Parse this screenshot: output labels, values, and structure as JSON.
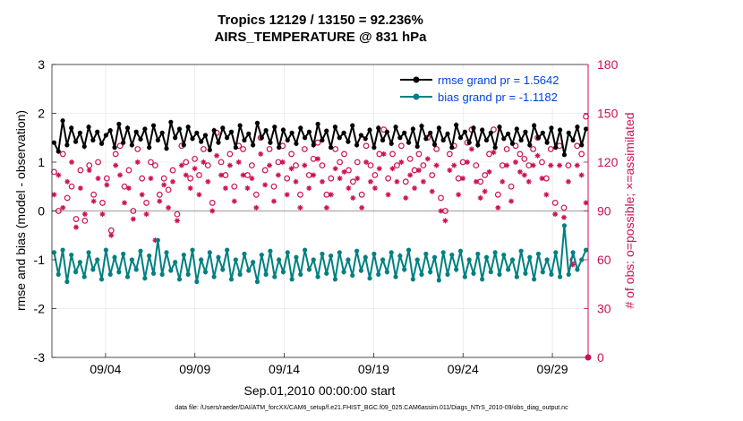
{
  "title_line1": "Tropics 12129 / 13150 = 92.236%",
  "title_line2": "AIRS_TEMPERATURE @ 831 hPa",
  "footnote": "data file: /Users/raeder/DAI/ATM_forcXX/CAM6_setup/f.e21.FHIST_BGC.f09_025.CAM6assim.011/Diags_NTrS_2010-09/obs_diag_output.nc",
  "chart_data": {
    "type": "line",
    "xlabel": "Sep.01,2010 00:00:00 start",
    "ylabel": "rmse and bias (model - observation)",
    "ylabel_right": "# of obs: o=possible; ×=assimilated",
    "xlim": [
      1.0,
      31.0
    ],
    "ylim": [
      -3,
      3
    ],
    "ylim_right": [
      0,
      180
    ],
    "x_ticks": [
      4,
      9,
      14,
      19,
      24,
      29
    ],
    "x_tick_labels": [
      "09/04",
      "09/09",
      "09/14",
      "09/19",
      "09/24",
      "09/29"
    ],
    "y_ticks": [
      -3,
      -2,
      -1,
      0,
      1,
      2,
      3
    ],
    "y_ticks_right": [
      0,
      30,
      60,
      90,
      120,
      150,
      180
    ],
    "grid": true,
    "legend_position": "top-right",
    "series": [
      {
        "name": "rmse grand pr = 1.5642",
        "color": "#000000",
        "legend_text_color": "#0044dd",
        "values": [
          1.4,
          1.22,
          1.85,
          1.35,
          1.7,
          1.42,
          1.6,
          1.32,
          1.72,
          1.45,
          1.62,
          1.38,
          1.55,
          1.65,
          1.3,
          1.78,
          1.4,
          1.7,
          1.35,
          1.62,
          1.47,
          1.68,
          1.3,
          1.75,
          1.45,
          1.6,
          1.28,
          1.82,
          1.5,
          1.68,
          1.35,
          1.72,
          1.48,
          1.6,
          1.42,
          1.55,
          1.25,
          1.65,
          1.4,
          1.7,
          1.5,
          1.62,
          1.3,
          1.75,
          1.45,
          1.58,
          1.35,
          1.8,
          1.5,
          1.65,
          1.4,
          1.72,
          1.3,
          1.66,
          1.45,
          1.6,
          1.38,
          1.7,
          1.5,
          1.62,
          1.35,
          1.78,
          1.45,
          1.64,
          1.3,
          1.72,
          1.5,
          1.6,
          1.42,
          1.75,
          1.35,
          1.55,
          1.48,
          1.66,
          1.3,
          1.7,
          1.45,
          1.62,
          1.38,
          1.72,
          1.5,
          1.6,
          1.4,
          1.68,
          1.32,
          1.74,
          1.48,
          1.6,
          1.36,
          1.7,
          1.45,
          1.58,
          1.3,
          1.76,
          1.5,
          1.62,
          1.4,
          1.7,
          1.35,
          1.66,
          1.45,
          1.6,
          1.3,
          1.72,
          1.48,
          1.58,
          1.38,
          1.68,
          1.45,
          1.62,
          1.35,
          1.75,
          1.5,
          1.6,
          1.4,
          1.7,
          1.3,
          1.66,
          1.15,
          1.6,
          1.45,
          1.72,
          1.35,
          1.68
        ]
      },
      {
        "name": "bias grand pr = -1.1182",
        "color": "#008080",
        "legend_text_color": "#0044dd",
        "values": [
          -0.85,
          -1.3,
          -0.8,
          -1.45,
          -0.9,
          -1.25,
          -1.05,
          -1.35,
          -0.85,
          -1.2,
          -1.0,
          -1.4,
          -0.8,
          -1.3,
          -0.95,
          -1.25,
          -0.88,
          -1.35,
          -1.0,
          -1.2,
          -0.82,
          -1.38,
          -0.92,
          -1.28,
          -0.6,
          -1.3,
          -0.85,
          -1.22,
          -1.05,
          -1.4,
          -0.9,
          -1.3,
          -0.8,
          -1.45,
          -1.0,
          -1.25,
          -0.85,
          -1.35,
          -0.95,
          -1.2,
          -0.8,
          -1.4,
          -1.0,
          -1.3,
          -0.88,
          -1.22,
          -1.05,
          -1.45,
          -0.9,
          -1.3,
          -0.82,
          -1.35,
          -1.0,
          -1.25,
          -0.85,
          -1.4,
          -0.95,
          -1.3,
          -0.8,
          -1.2,
          -1.0,
          -1.35,
          -0.88,
          -1.28,
          -0.92,
          -1.4,
          -0.85,
          -1.25,
          -1.0,
          -1.32,
          -0.82,
          -1.22,
          -0.95,
          -1.38,
          -0.88,
          -1.3,
          -1.0,
          -1.25,
          -0.85,
          -1.35,
          -0.92,
          -1.2,
          -0.8,
          -1.4,
          -1.0,
          -1.3,
          -0.88,
          -1.25,
          -0.95,
          -1.42,
          -0.85,
          -1.3,
          -0.9,
          -1.2,
          -0.82,
          -1.35,
          -1.0,
          -1.28,
          -0.88,
          -1.4,
          -0.95,
          -1.25,
          -0.85,
          -1.3,
          -0.9,
          -1.2,
          -1.0,
          -1.35,
          -0.82,
          -1.28,
          -0.95,
          -1.4,
          -0.88,
          -1.25,
          -1.0,
          -1.3,
          -0.85,
          -1.35,
          -0.3,
          -1.3,
          -0.85,
          -1.2,
          -1.0,
          -0.8
        ]
      }
    ],
    "obs_color": "#cc1155",
    "possible_counts": [
      114,
      90,
      125,
      98,
      105,
      85,
      115,
      84,
      118,
      100,
      120,
      95,
      110,
      78,
      125,
      130,
      105,
      115,
      90,
      128,
      110,
      95,
      120,
      118,
      100,
      110,
      103,
      115,
      88,
      130,
      120,
      110,
      122,
      112,
      128,
      118,
      95,
      138,
      120,
      112,
      125,
      105,
      130,
      128,
      112,
      118,
      100,
      135,
      115,
      128,
      105,
      120,
      130,
      110,
      125,
      118,
      100,
      128,
      112,
      122,
      132,
      118,
      100,
      110,
      128,
      120,
      125,
      115,
      108,
      120,
      100,
      130,
      118,
      112,
      125,
      140,
      110,
      125,
      118,
      130,
      108,
      122,
      115,
      125,
      118,
      135,
      112,
      128,
      98,
      90,
      125,
      130,
      110,
      120,
      132,
      140,
      118,
      108,
      112,
      125,
      140,
      100,
      118,
      128,
      105,
      130,
      125,
      122,
      118,
      128,
      135,
      120,
      110,
      128,
      95,
      130,
      92,
      118,
      60,
      130,
      125,
      148
    ],
    "assimilated_counts": [
      100,
      112,
      92,
      108,
      120,
      80,
      104,
      88,
      115,
      96,
      110,
      88,
      106,
      75,
      118,
      112,
      95,
      104,
      85,
      120,
      100,
      88,
      110,
      72,
      96,
      106,
      92,
      108,
      84,
      118,
      112,
      104,
      116,
      100,
      120,
      108,
      90,
      124,
      112,
      104,
      118,
      96,
      120,
      112,
      104,
      110,
      92,
      125,
      106,
      118,
      96,
      112,
      120,
      100,
      116,
      108,
      92,
      118,
      104,
      112,
      122,
      108,
      92,
      100,
      116,
      110,
      114,
      104,
      98,
      110,
      92,
      120,
      108,
      104,
      116,
      125,
      100,
      116,
      108,
      120,
      98,
      112,
      104,
      115,
      108,
      122,
      102,
      118,
      90,
      84,
      115,
      118,
      100,
      110,
      120,
      128,
      108,
      98,
      102,
      114,
      126,
      92,
      108,
      118,
      96,
      120,
      114,
      112,
      108,
      118,
      124,
      110,
      100,
      118,
      88,
      118,
      86,
      108,
      57,
      118,
      112,
      95
    ]
  }
}
